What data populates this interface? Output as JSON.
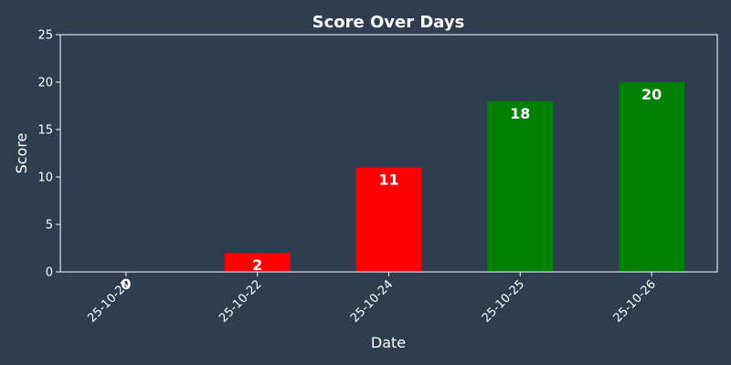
{
  "chart_data": {
    "type": "bar",
    "title": "Score Over Days",
    "xlabel": "Date",
    "ylabel": "Score",
    "categories": [
      "25-10-21",
      "25-10-22",
      "25-10-24",
      "25-10-25",
      "25-10-26"
    ],
    "values": [
      0,
      2,
      11,
      18,
      20
    ],
    "bar_colors": [
      "#ff0000",
      "#ff0000",
      "#ff0000",
      "#008000",
      "#008000"
    ],
    "ylim": [
      0,
      25
    ],
    "yticks": [
      0,
      5,
      10,
      15,
      20,
      25
    ],
    "grid": false,
    "legend": "none",
    "data_labels": "inside-top",
    "colors": {
      "background": "#2e3e50",
      "axis": "#ffffff",
      "text": "#ffffff"
    }
  }
}
